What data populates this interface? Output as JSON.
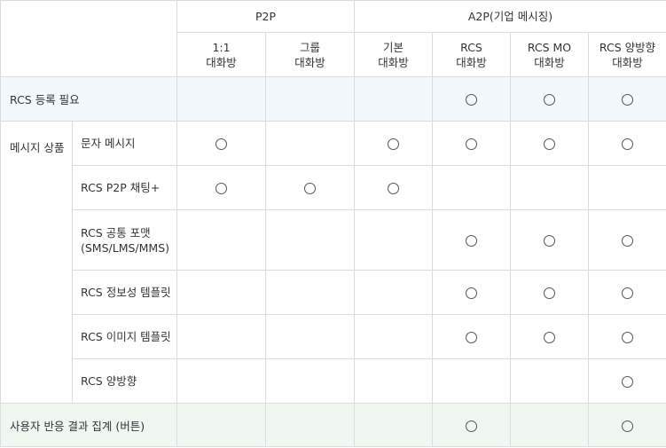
{
  "header": {
    "group_p2p": "P2P",
    "group_a2p": "A2P(기업 메시징)",
    "columns": [
      {
        "line1": "1:1",
        "line2": "대화방"
      },
      {
        "line1": "그룹",
        "line2": "대화방"
      },
      {
        "line1": "기본",
        "line2": "대화방"
      },
      {
        "line1": "RCS",
        "line2": "대화방"
      },
      {
        "line1": "RCS MO",
        "line2": "대화방"
      },
      {
        "line1": "RCS 양방향",
        "line2": "대화방"
      }
    ]
  },
  "rows": {
    "registration": {
      "label": "RCS 등록 필요",
      "marks": [
        false,
        false,
        false,
        true,
        true,
        true
      ]
    },
    "message_group_label": "메시지 상품",
    "products": [
      {
        "label": "문자 메시지",
        "marks": [
          true,
          false,
          true,
          true,
          true,
          true
        ]
      },
      {
        "label": "RCS P2P 채팅+",
        "marks": [
          true,
          true,
          true,
          false,
          false,
          false
        ]
      },
      {
        "label_line1": "RCS 공통 포맷",
        "label_line2": "(SMS/LMS/MMS)",
        "marks": [
          false,
          false,
          false,
          true,
          true,
          true
        ]
      },
      {
        "label": "RCS 정보성 템플릿",
        "marks": [
          false,
          false,
          false,
          true,
          true,
          true
        ]
      },
      {
        "label": "RCS 이미지 템플릿",
        "marks": [
          false,
          false,
          false,
          true,
          true,
          true
        ]
      },
      {
        "label": "RCS 양방향",
        "marks": [
          false,
          false,
          false,
          false,
          false,
          true
        ]
      }
    ],
    "aggregation": {
      "label": "사용자 반응 결과 집계 (버튼)",
      "marks": [
        false,
        false,
        false,
        true,
        false,
        true
      ]
    }
  },
  "colors": {
    "row_blue": "#f1f8fe",
    "row_green": "#eef7f2",
    "border": "#dcdcdc"
  },
  "mark_icon": "circle-icon"
}
